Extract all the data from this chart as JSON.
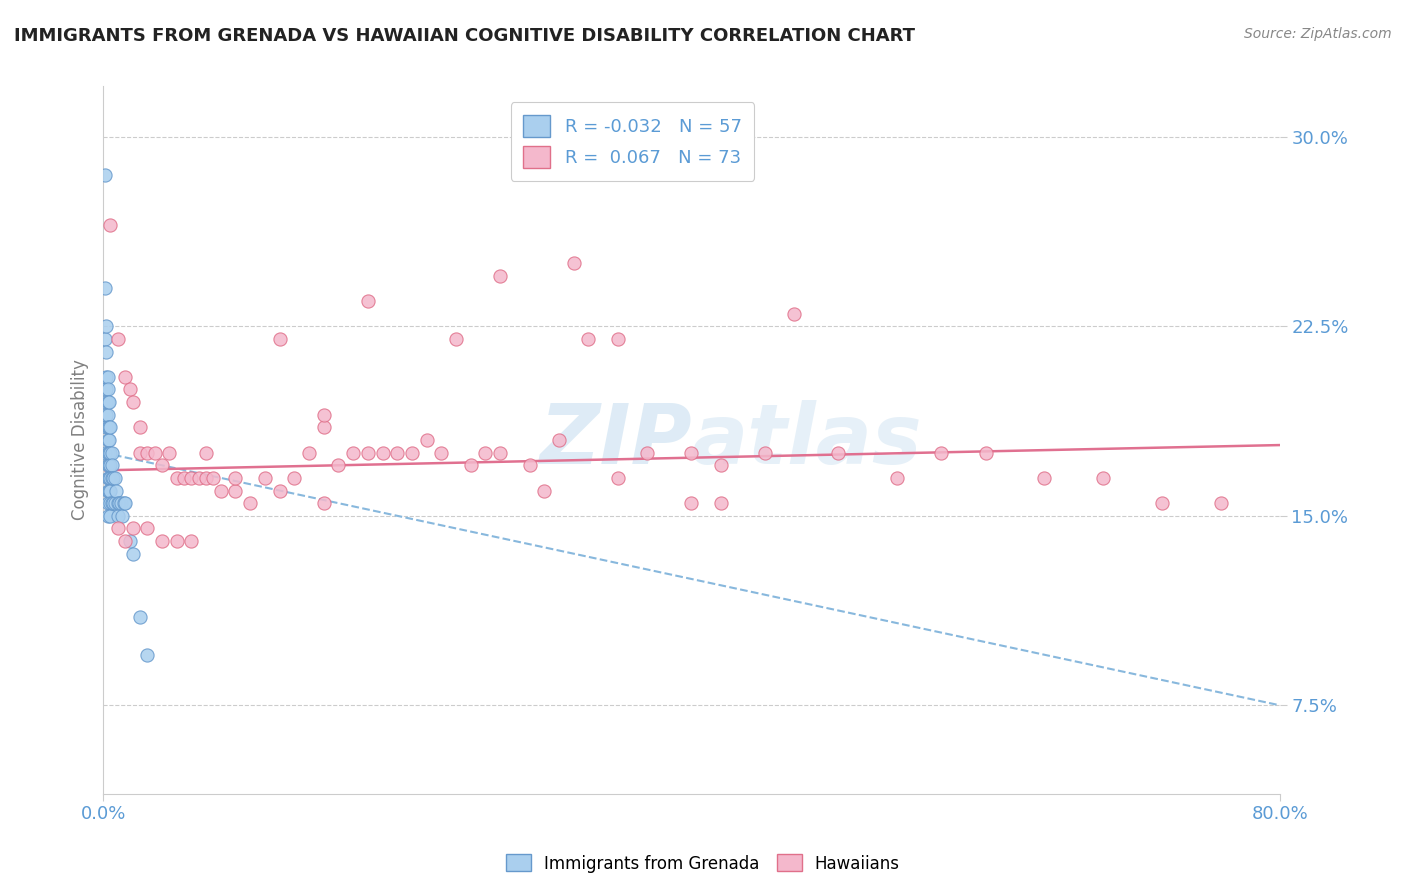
{
  "title": "IMMIGRANTS FROM GRENADA VS HAWAIIAN COGNITIVE DISABILITY CORRELATION CHART",
  "source_text": "Source: ZipAtlas.com",
  "ylabel": "Cognitive Disability",
  "xmin": 0.0,
  "xmax": 0.8,
  "ymin": 0.04,
  "ymax": 0.32,
  "yticks": [
    0.075,
    0.15,
    0.225,
    0.3
  ],
  "ytick_labels": [
    "7.5%",
    "15.0%",
    "22.5%",
    "30.0%"
  ],
  "xtick_labels": [
    "0.0%",
    "80.0%"
  ],
  "legend_r_blue": "-0.032",
  "legend_n_blue": "57",
  "legend_r_pink": "0.067",
  "legend_n_pink": "73",
  "blue_color": "#aacfee",
  "pink_color": "#f4b8cc",
  "blue_edge_color": "#6699cc",
  "pink_edge_color": "#e0708a",
  "blue_line_color": "#88b8dd",
  "pink_line_color": "#e07090",
  "watermark_color": "#d8eaf8",
  "blue_trend_x0": 0.0,
  "blue_trend_y0": 0.175,
  "blue_trend_x1": 0.8,
  "blue_trend_y1": 0.075,
  "pink_trend_x0": 0.0,
  "pink_trend_y0": 0.168,
  "pink_trend_x1": 0.8,
  "pink_trend_y1": 0.178,
  "blue_scatter_x": [
    0.001,
    0.001,
    0.001,
    0.001,
    0.002,
    0.002,
    0.002,
    0.002,
    0.002,
    0.002,
    0.002,
    0.003,
    0.003,
    0.003,
    0.003,
    0.003,
    0.003,
    0.003,
    0.003,
    0.003,
    0.003,
    0.003,
    0.003,
    0.004,
    0.004,
    0.004,
    0.004,
    0.004,
    0.004,
    0.004,
    0.005,
    0.005,
    0.005,
    0.005,
    0.005,
    0.005,
    0.005,
    0.006,
    0.006,
    0.006,
    0.006,
    0.007,
    0.007,
    0.008,
    0.008,
    0.009,
    0.01,
    0.01,
    0.011,
    0.012,
    0.013,
    0.014,
    0.015,
    0.018,
    0.02,
    0.025,
    0.03
  ],
  "blue_scatter_y": [
    0.285,
    0.24,
    0.22,
    0.175,
    0.225,
    0.215,
    0.205,
    0.2,
    0.195,
    0.19,
    0.185,
    0.205,
    0.2,
    0.195,
    0.19,
    0.185,
    0.18,
    0.175,
    0.17,
    0.165,
    0.16,
    0.155,
    0.15,
    0.195,
    0.185,
    0.18,
    0.175,
    0.17,
    0.165,
    0.16,
    0.185,
    0.175,
    0.17,
    0.165,
    0.16,
    0.155,
    0.15,
    0.175,
    0.17,
    0.165,
    0.155,
    0.165,
    0.155,
    0.165,
    0.155,
    0.16,
    0.155,
    0.15,
    0.155,
    0.155,
    0.15,
    0.155,
    0.155,
    0.14,
    0.135,
    0.11,
    0.095
  ],
  "pink_scatter_x": [
    0.005,
    0.01,
    0.015,
    0.018,
    0.02,
    0.025,
    0.025,
    0.03,
    0.035,
    0.04,
    0.045,
    0.05,
    0.055,
    0.06,
    0.065,
    0.07,
    0.075,
    0.08,
    0.09,
    0.1,
    0.11,
    0.12,
    0.13,
    0.14,
    0.15,
    0.16,
    0.17,
    0.18,
    0.19,
    0.2,
    0.21,
    0.22,
    0.23,
    0.24,
    0.25,
    0.26,
    0.27,
    0.29,
    0.31,
    0.33,
    0.35,
    0.37,
    0.4,
    0.42,
    0.45,
    0.47,
    0.5,
    0.54,
    0.57,
    0.6,
    0.64,
    0.68,
    0.72,
    0.76,
    0.01,
    0.015,
    0.02,
    0.03,
    0.04,
    0.05,
    0.06,
    0.32,
    0.12,
    0.15,
    0.18,
    0.27,
    0.35,
    0.3,
    0.4,
    0.15,
    0.42,
    0.07,
    0.09
  ],
  "pink_scatter_y": [
    0.265,
    0.22,
    0.205,
    0.2,
    0.195,
    0.185,
    0.175,
    0.175,
    0.175,
    0.17,
    0.175,
    0.165,
    0.165,
    0.165,
    0.165,
    0.165,
    0.165,
    0.16,
    0.16,
    0.155,
    0.165,
    0.16,
    0.165,
    0.175,
    0.185,
    0.17,
    0.175,
    0.175,
    0.175,
    0.175,
    0.175,
    0.18,
    0.175,
    0.22,
    0.17,
    0.175,
    0.175,
    0.17,
    0.18,
    0.22,
    0.165,
    0.175,
    0.175,
    0.17,
    0.175,
    0.23,
    0.175,
    0.165,
    0.175,
    0.175,
    0.165,
    0.165,
    0.155,
    0.155,
    0.145,
    0.14,
    0.145,
    0.145,
    0.14,
    0.14,
    0.14,
    0.25,
    0.22,
    0.19,
    0.235,
    0.245,
    0.22,
    0.16,
    0.155,
    0.155,
    0.155,
    0.175,
    0.165
  ]
}
